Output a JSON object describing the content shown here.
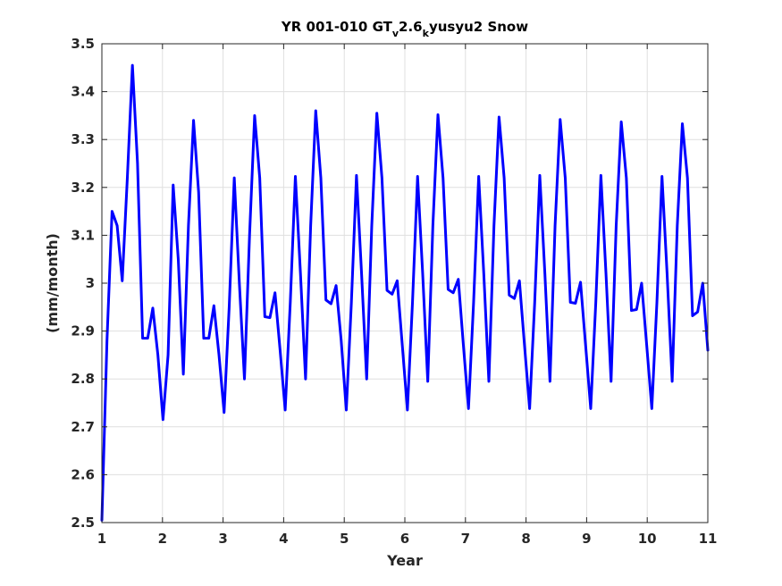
{
  "chart_data": {
    "type": "line",
    "title": {
      "main": "YR 001-010 GT",
      "sub1": "v",
      "mid": "2.6",
      "sub2": "k",
      "tail": "yusyu2 Snow"
    },
    "xlabel": "Year",
    "ylabel": "(mm/month)",
    "xlim": [
      1,
      11
    ],
    "ylim": [
      2.5,
      3.5
    ],
    "xticks": [
      1,
      2,
      3,
      4,
      5,
      6,
      7,
      8,
      9,
      10,
      11
    ],
    "xtick_labels": [
      "1",
      "2",
      "3",
      "4",
      "5",
      "6",
      "7",
      "8",
      "9",
      "10",
      "11"
    ],
    "yticks": [
      2.5,
      2.6,
      2.7,
      2.8,
      2.9,
      3.0,
      3.1,
      3.2,
      3.3,
      3.4,
      3.5
    ],
    "ytick_labels": [
      "2.5",
      "2.6",
      "2.7",
      "2.8",
      "2.9",
      "3",
      "3.1",
      "3.2",
      "3.3",
      "3.4",
      "3.5"
    ],
    "grid": true,
    "line_color": "#0000ff",
    "series": [
      {
        "values": [
          2.505,
          2.88,
          3.15,
          3.12,
          3.005,
          3.22,
          3.455,
          3.25,
          2.885,
          2.885,
          2.948,
          2.85,
          2.715,
          2.85,
          3.205,
          3.05,
          2.81,
          3.12,
          3.34,
          3.19,
          2.885,
          2.885,
          2.953,
          2.85,
          2.73,
          2.95,
          3.22,
          3.0,
          2.8,
          3.1,
          3.35,
          3.22,
          2.93,
          2.928,
          2.98,
          2.86,
          2.735,
          2.96,
          3.223,
          3.02,
          2.8,
          3.12,
          3.36,
          3.22,
          2.965,
          2.957,
          2.995,
          2.88,
          2.735,
          2.96,
          3.225,
          3.02,
          2.8,
          3.12,
          3.355,
          3.22,
          2.985,
          2.977,
          3.005,
          2.87,
          2.735,
          2.96,
          3.223,
          3.02,
          2.795,
          3.12,
          3.352,
          3.22,
          2.987,
          2.98,
          3.008,
          2.87,
          2.738,
          2.96,
          3.223,
          3.02,
          2.795,
          3.12,
          3.347,
          3.22,
          2.975,
          2.968,
          3.005,
          2.87,
          2.738,
          2.96,
          3.225,
          3.02,
          2.795,
          3.12,
          3.342,
          3.22,
          2.96,
          2.958,
          3.002,
          2.87,
          2.738,
          2.96,
          3.225,
          3.02,
          2.795,
          3.12,
          3.337,
          3.22,
          2.943,
          2.945,
          3.0,
          2.87,
          2.738,
          2.96,
          3.223,
          3.02,
          2.795,
          3.12,
          3.333,
          3.22,
          2.932,
          2.94,
          3.0,
          2.86
        ]
      }
    ]
  }
}
